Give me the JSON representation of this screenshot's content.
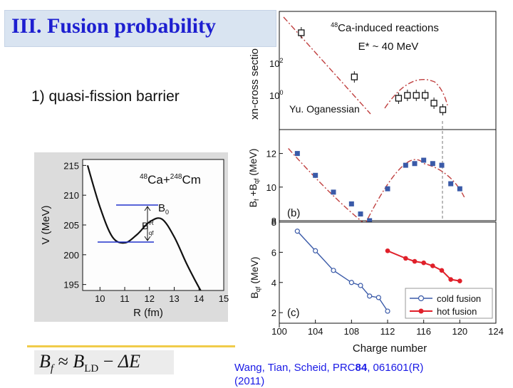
{
  "slide": {
    "title": "III. Fusion probability",
    "bullet": "1) quasi-fission barrier",
    "author_label": "Yu. Oganessian",
    "citation_prefix": "Wang, Tian, Scheid, PRC",
    "citation_volume": "84",
    "citation_suffix": ", 061601(R)",
    "citation_year": "(2011)",
    "formula": {
      "lhs": "B",
      "lhs_sub": "f",
      "approx": "≈",
      "rhs": "B",
      "rhs_sub": "LD",
      "minus": "−",
      "delta": "ΔE"
    }
  },
  "colors": {
    "title": "#1d1fd0",
    "citation": "#1a1ae6",
    "blue_series": "#3a5aa8",
    "red_series": "#e0202a",
    "dashdot": "#c04040",
    "underline": "#f0cc4a"
  },
  "chart_data": [
    {
      "type": "line",
      "reaction_label": "48Ca+248Cm",
      "xlabel": "R (fm)",
      "ylabel": "V (MeV)",
      "xticks": [
        "10",
        "11",
        "12",
        "13",
        "14",
        "15"
      ],
      "yticks": [
        "195",
        "200",
        "205",
        "210",
        "215"
      ],
      "xlim": [
        9.3,
        15
      ],
      "ylim": [
        194,
        216
      ],
      "annotations": [
        "B0",
        "Bqf R"
      ],
      "series": [
        {
          "x": [
            9.5,
            10,
            10.5,
            11,
            11.5,
            12,
            12.5,
            13,
            13.5,
            14,
            14.5
          ],
          "y": [
            215,
            208,
            203,
            202,
            203.4,
            205.5,
            206,
            203,
            198.5,
            194.5,
            191
          ]
        }
      ]
    },
    {
      "type": "scatter",
      "panel_label": "",
      "annotation": "48Ca-induced reactions",
      "annotation2": "E* ~ 40 MeV",
      "ylabel": "xn-cross sectio",
      "yticks": [
        "10^0",
        "10^2"
      ],
      "yscale": "log",
      "series": [
        {
          "x": [
            102,
            108,
            113,
            114,
            115,
            116,
            117,
            118
          ],
          "y": [
            10000,
            20,
            1,
            1.5,
            1.5,
            1.5,
            0.5,
            0.2
          ]
        }
      ]
    },
    {
      "type": "scatter",
      "panel_label": "(b)",
      "ylabel": "Bf+Bqf (MeV)",
      "yticks": [
        "8",
        "10",
        "12"
      ],
      "ylim": [
        8,
        13
      ],
      "series": [
        {
          "x": [
            102,
            104,
            106,
            108,
            109,
            110,
            112,
            114,
            115,
            116,
            117,
            118,
            119,
            120
          ],
          "y": [
            12,
            10.7,
            9.7,
            9,
            8.4,
            8,
            9.9,
            11.3,
            11.4,
            11.6,
            11.4,
            11.3,
            10.2,
            9.9
          ]
        }
      ]
    },
    {
      "type": "line",
      "panel_label": "(c)",
      "ylabel": "Bqf (MeV)",
      "xlabel": "Charge number",
      "xticks": [
        "100",
        "104",
        "108",
        "112",
        "116",
        "120",
        "124"
      ],
      "yticks": [
        "2",
        "4",
        "6",
        "8"
      ],
      "xlim": [
        100,
        124
      ],
      "ylim": [
        1.3,
        8
      ],
      "legend": [
        "cold fusion",
        "hot fusion"
      ],
      "series": [
        {
          "name": "cold fusion",
          "x": [
            102,
            104,
            106,
            108,
            109,
            110,
            111,
            112
          ],
          "y": [
            7.4,
            6.1,
            4.8,
            4,
            3.8,
            3.1,
            3,
            2.1
          ]
        },
        {
          "name": "hot fusion",
          "x": [
            112,
            114,
            115,
            116,
            117,
            118,
            119,
            120
          ],
          "y": [
            6.1,
            5.6,
            5.4,
            5.3,
            5.1,
            4.8,
            4.2,
            4.1
          ]
        }
      ]
    }
  ]
}
